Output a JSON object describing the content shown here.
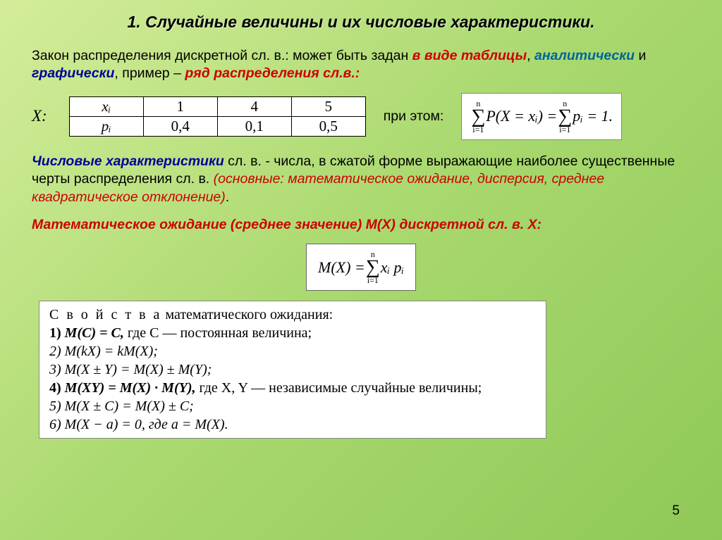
{
  "title": "1. Случайные величины и их числовые характеристики.",
  "intro": {
    "t1": "Закон распределения дискретной сл. в.: может быть задан ",
    "t2": "в виде таблицы",
    "t3": ", ",
    "t4": "аналитически",
    "t5": " и ",
    "t6": "графически",
    "t7": ", пример – ",
    "t8": "ряд распределения сл.в.:"
  },
  "X_label": "X:",
  "dist_table": {
    "r0": [
      "xᵢ",
      "1",
      "4",
      "5"
    ],
    "r1": [
      "pᵢ",
      "0,4",
      "0,1",
      "0,5"
    ]
  },
  "at_this": "при этом:",
  "sum_formula": {
    "lead": "P(X = xᵢ) = ",
    "tail": " pᵢ = 1.",
    "top": "n",
    "bot": "i=1"
  },
  "numchar": {
    "t1": "Числовые характеристики",
    "t2": " сл. в. - числа, в сжатой форме выражающие наиболее существенные черты распределения сл. в. ",
    "t3": "(основные: математическое ожидание, дисперсия, среднее квадратическое отклонение)",
    "t4": "."
  },
  "matexp": "Математическое ожидание (среднее значение) M(X) дискретной сл. в. X:",
  "mx_formula": {
    "lhs": "M(X) = ",
    "term": " xᵢ pᵢ",
    "top": "n",
    "bot": "i=1"
  },
  "props": {
    "title_spaced": "С в о й с т в а",
    "title_rest": " математического ожидания:",
    "l1a": "1) ",
    "l1b": "M(C) = C, ",
    "l1c": "где C — постоянная величина;",
    "l2": "2) M(kX) = kM(X);",
    "l3": "3) M(X ± Y) = M(X) ± M(Y);",
    "l4a": "4) ",
    "l4b": "M(XY) = M(X) · M(Y), ",
    "l4c": "где X, Y — независимые случайные величины;",
    "l5": "5) M(X ± C) = M(X) ± C;",
    "l6": "6) M(X − a) = 0, где a = M(X)."
  },
  "page_num": "5",
  "colors": {
    "red": "#cc0000",
    "blue": "#006699",
    "darkblue": "#000099"
  }
}
